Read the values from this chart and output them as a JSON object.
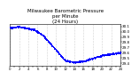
{
  "title": "Milwaukee Barometric Pressure\nper Minute\n(24 Hours)",
  "title_fontsize": 4.0,
  "bg_color": "#ffffff",
  "dot_color": "#0000ff",
  "dot_size": 0.5,
  "xlim": [
    0,
    1440
  ],
  "ylim": [
    29.35,
    30.15
  ],
  "yticks": [
    29.4,
    29.5,
    29.6,
    29.7,
    29.8,
    29.9,
    30.0,
    30.1
  ],
  "ytick_labels": [
    "29.4",
    "29.5",
    "29.6",
    "29.7",
    "29.8",
    "29.9",
    "30.0",
    "30.1"
  ],
  "ytick_fontsize": 3.0,
  "xtick_step": 60,
  "xtick_labels_step": 120,
  "xtick_fontsize": 2.8,
  "grid_color": "#aaaaaa",
  "grid_linestyle": ":",
  "grid_linewidth": 0.4,
  "pressure_segments": [
    {
      "t_start": 0,
      "t_end": 120,
      "p_start": 30.08,
      "p_end": 30.1
    },
    {
      "t_start": 120,
      "t_end": 300,
      "p_start": 30.1,
      "p_end": 30.05
    },
    {
      "t_start": 300,
      "t_end": 420,
      "p_start": 30.05,
      "p_end": 29.95
    },
    {
      "t_start": 420,
      "t_end": 480,
      "p_start": 29.95,
      "p_end": 29.85
    },
    {
      "t_start": 480,
      "t_end": 540,
      "p_start": 29.85,
      "p_end": 29.75
    },
    {
      "t_start": 540,
      "t_end": 600,
      "p_start": 29.75,
      "p_end": 29.65
    },
    {
      "t_start": 600,
      "t_end": 660,
      "p_start": 29.65,
      "p_end": 29.55
    },
    {
      "t_start": 660,
      "t_end": 720,
      "p_start": 29.55,
      "p_end": 29.45
    },
    {
      "t_start": 720,
      "t_end": 840,
      "p_start": 29.45,
      "p_end": 29.42
    },
    {
      "t_start": 840,
      "t_end": 960,
      "p_start": 29.42,
      "p_end": 29.44
    },
    {
      "t_start": 960,
      "t_end": 1080,
      "p_start": 29.44,
      "p_end": 29.5
    },
    {
      "t_start": 1080,
      "t_end": 1200,
      "p_start": 29.5,
      "p_end": 29.55
    },
    {
      "t_start": 1200,
      "t_end": 1320,
      "p_start": 29.55,
      "p_end": 29.58
    },
    {
      "t_start": 1320,
      "t_end": 1440,
      "p_start": 29.58,
      "p_end": 29.6
    }
  ],
  "noise_std": 0.008
}
